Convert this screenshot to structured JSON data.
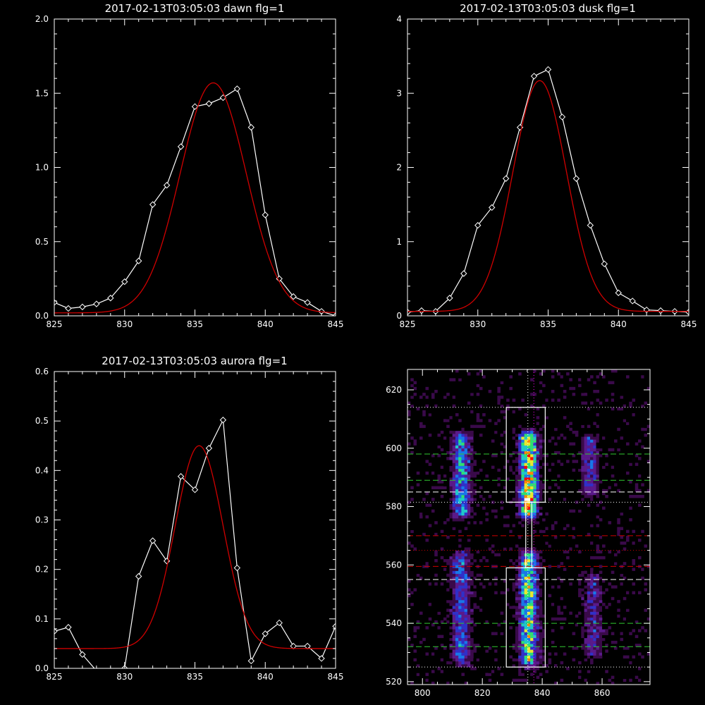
{
  "chart_data": [
    {
      "type": "line",
      "title": "2017-02-13T03:05:03 dawn flg=1",
      "xlim": [
        825,
        845
      ],
      "ylim": [
        0,
        2.0
      ],
      "xticks": [
        825,
        830,
        835,
        840,
        845
      ],
      "yticks": [
        0.0,
        0.5,
        1.0,
        1.5,
        2.0
      ],
      "xtick_labels": [
        "825",
        "830",
        "835",
        "840",
        "845"
      ],
      "ytick_labels": [
        "0.0",
        "0.5",
        "1.0",
        "1.5",
        "2.0"
      ],
      "series": [
        {
          "color": "#ffffff",
          "marker": "diamond",
          "x": [
            825,
            826,
            827,
            828,
            829,
            830,
            831,
            832,
            833,
            834,
            835,
            836,
            837,
            838,
            839,
            840,
            841,
            842,
            843,
            844,
            845
          ],
          "y": [
            0.09,
            0.05,
            0.06,
            0.08,
            0.12,
            0.23,
            0.37,
            0.75,
            0.88,
            1.14,
            1.41,
            1.43,
            1.47,
            1.53,
            1.27,
            0.68,
            0.25,
            0.13,
            0.09,
            0.03,
            0.0
          ]
        },
        {
          "color": "#d00000",
          "curve": "gaussian",
          "amplitude": 1.55,
          "center": 836.3,
          "sigma": 2.35,
          "baseline": 0.02
        }
      ]
    },
    {
      "type": "line",
      "title": "2017-02-13T03:05:03 dusk flg=1",
      "xlim": [
        825,
        845
      ],
      "ylim": [
        0,
        4
      ],
      "xticks": [
        825,
        830,
        835,
        840,
        845
      ],
      "yticks": [
        0,
        1,
        2,
        3,
        4
      ],
      "xtick_labels": [
        "825",
        "830",
        "835",
        "840",
        "845"
      ],
      "ytick_labels": [
        "0",
        "1",
        "2",
        "3",
        "4"
      ],
      "series": [
        {
          "color": "#ffffff",
          "marker": "diamond",
          "x": [
            825,
            826,
            827,
            828,
            829,
            830,
            831,
            832,
            833,
            834,
            835,
            836,
            837,
            838,
            839,
            840,
            841,
            842,
            843,
            844,
            845
          ],
          "y": [
            0.05,
            0.07,
            0.06,
            0.24,
            0.57,
            1.22,
            1.46,
            1.85,
            2.54,
            3.23,
            3.32,
            2.68,
            1.85,
            1.22,
            0.7,
            0.31,
            0.2,
            0.08,
            0.07,
            0.06,
            0.05
          ]
        },
        {
          "color": "#d00000",
          "curve": "gaussian",
          "amplitude": 3.11,
          "center": 834.4,
          "sigma": 1.9,
          "baseline": 0.06
        }
      ]
    },
    {
      "type": "line",
      "title": "2017-02-13T03:05:03 aurora flg=1",
      "xlim": [
        825,
        845
      ],
      "ylim": [
        0,
        0.6
      ],
      "xticks": [
        825,
        830,
        835,
        840,
        845
      ],
      "yticks": [
        0.0,
        0.1,
        0.2,
        0.3,
        0.4,
        0.5,
        0.6
      ],
      "xtick_labels": [
        "825",
        "830",
        "835",
        "840",
        "845"
      ],
      "ytick_labels": [
        "0.0",
        "0.1",
        "0.2",
        "0.3",
        "0.4",
        "0.5",
        "0.6"
      ],
      "series": [
        {
          "color": "#ffffff",
          "marker": "diamond",
          "x": [
            825,
            826,
            827,
            828,
            829,
            830,
            831,
            832,
            833,
            834,
            835,
            836,
            837,
            838,
            839,
            840,
            841,
            842,
            843,
            844,
            845
          ],
          "y": [
            0.075,
            0.083,
            0.028,
            -0.005,
            -0.005,
            0.0,
            0.186,
            0.258,
            0.217,
            0.388,
            0.361,
            0.445,
            0.502,
            0.203,
            0.015,
            0.07,
            0.092,
            0.045,
            0.045,
            0.02,
            0.085
          ]
        },
        {
          "color": "#d00000",
          "curve": "gaussian",
          "amplitude": 0.41,
          "center": 835.3,
          "sigma": 1.7,
          "baseline": 0.04
        }
      ]
    },
    {
      "type": "heatmap",
      "xlim": [
        795,
        876
      ],
      "ylim": [
        519,
        627
      ],
      "xticks": [
        800,
        820,
        840,
        860
      ],
      "yticks": [
        520,
        540,
        560,
        580,
        600,
        620
      ],
      "xtick_labels": [
        "800",
        "820",
        "840",
        "860"
      ],
      "ytick_labels": [
        "520",
        "540",
        "560",
        "580",
        "600",
        "620"
      ],
      "colormap": [
        "#000000",
        "#3a0a4a",
        "#5a1a8a",
        "#3030c8",
        "#1878e8",
        "#20c8c8",
        "#30e070",
        "#e8e830",
        "#ff8800",
        "#ff0000",
        "#ffffff"
      ],
      "bands": [
        {
          "x": 813,
          "y0": 578,
          "y1": 603,
          "peak": 0.55
        },
        {
          "x": 813,
          "y0": 527,
          "y1": 562,
          "peak": 0.45
        },
        {
          "x": 835.5,
          "y0": 578,
          "y1": 603,
          "peak": 0.95
        },
        {
          "x": 835.5,
          "y0": 527,
          "y1": 562,
          "peak": 0.75
        },
        {
          "x": 856,
          "y0": 585,
          "y1": 602,
          "peak": 0.35
        },
        {
          "x": 857,
          "y0": 530,
          "y1": 555,
          "peak": 0.3
        }
      ],
      "boxes": [
        {
          "x0": 828,
          "x1": 841,
          "y0": 581.5,
          "y1": 614
        },
        {
          "x0": 828,
          "x1": 841,
          "y0": 525,
          "y1": 559
        },
        {
          "x0": 834.5,
          "x1": 836.5,
          "y0": 559,
          "y1": 581.5
        }
      ],
      "hlines": [
        {
          "y": 614,
          "color": "#ffffff",
          "style": "dotted"
        },
        {
          "y": 598,
          "color": "#30c830",
          "style": "dashed"
        },
        {
          "y": 589,
          "color": "#30c830",
          "style": "dashed"
        },
        {
          "y": 585,
          "color": "#ffffff",
          "style": "dashed"
        },
        {
          "y": 581.5,
          "color": "#ffffff",
          "style": "dotted"
        },
        {
          "y": 570,
          "color": "#d00000",
          "style": "dashed"
        },
        {
          "y": 565,
          "color": "#d00000",
          "style": "dotted"
        },
        {
          "y": 559.5,
          "color": "#d00000",
          "style": "dashed"
        },
        {
          "y": 555,
          "color": "#ffffff",
          "style": "dashed"
        },
        {
          "y": 540,
          "color": "#30c830",
          "style": "dashed"
        },
        {
          "y": 532,
          "color": "#30c830",
          "style": "dashed"
        },
        {
          "y": 525,
          "color": "#ffffff",
          "style": "dotted"
        }
      ],
      "vlines": [
        {
          "x": 835.2,
          "color": "#ffffff",
          "style": "dotted"
        },
        {
          "x": 837.2,
          "color": "#ff00ff",
          "style": "dotted"
        }
      ]
    }
  ]
}
